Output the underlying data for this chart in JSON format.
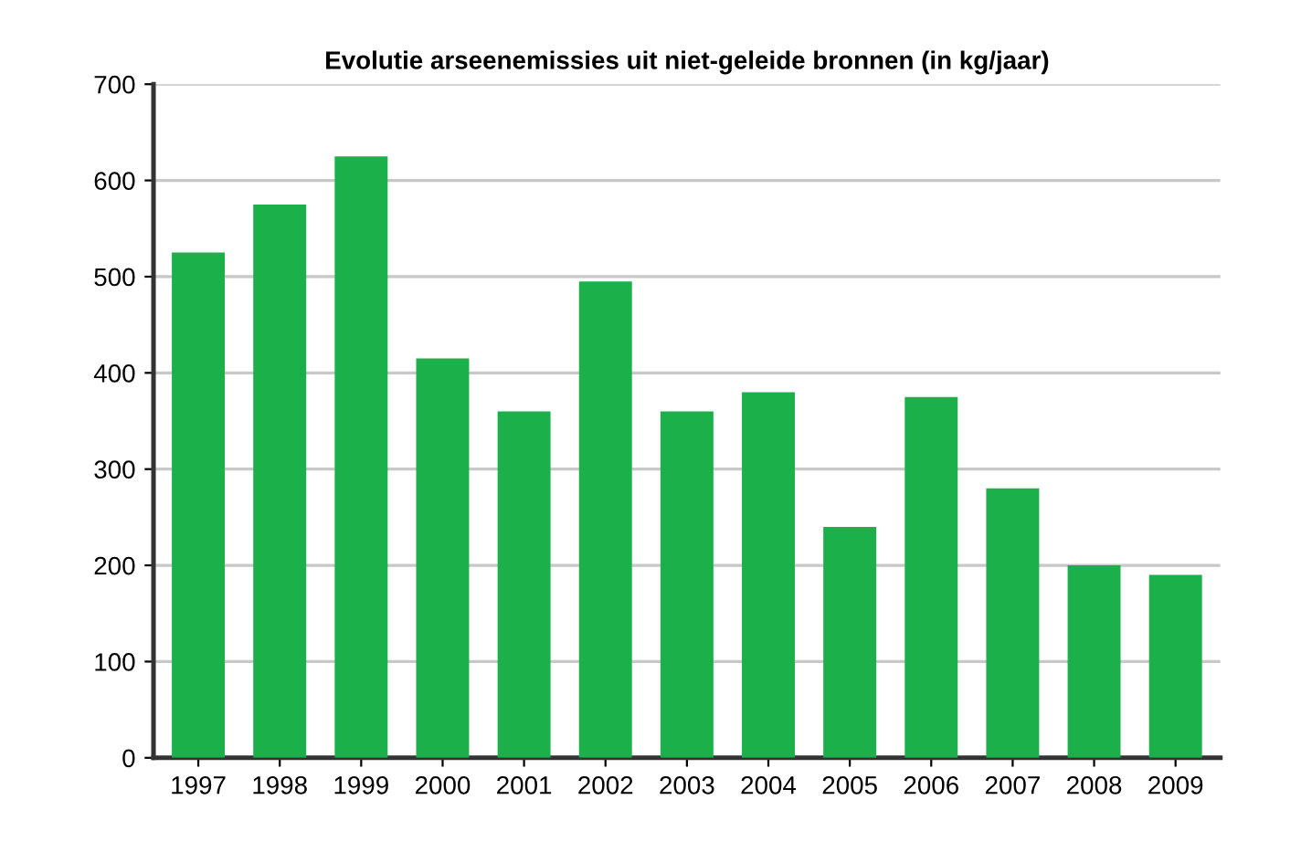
{
  "chart_data": {
    "type": "bar",
    "title": "Evolutie arseenemissies uit niet-geleide bronnen (in kg/jaar)",
    "categories": [
      "1997",
      "1998",
      "1999",
      "2000",
      "2001",
      "2002",
      "2003",
      "2004",
      "2005",
      "2006",
      "2007",
      "2008",
      "2009"
    ],
    "values": [
      525,
      575,
      625,
      415,
      360,
      495,
      360,
      380,
      240,
      375,
      280,
      200,
      190
    ],
    "color": "#1bb04a",
    "ylim": [
      0,
      700
    ],
    "yticks": [
      0,
      100,
      200,
      300,
      400,
      500,
      600,
      700
    ],
    "grid": "y"
  }
}
